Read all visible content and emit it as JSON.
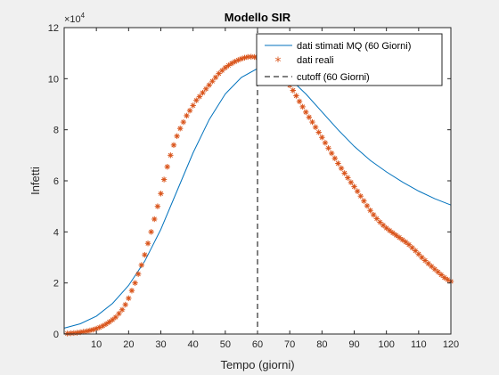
{
  "chart_data": {
    "type": "line",
    "title": "Modello SIR",
    "xlabel": "Tempo (giorni)",
    "ylabel": "Infetti",
    "y_exponent": "×10",
    "y_exponent_power": "4",
    "xlim": [
      0,
      120
    ],
    "ylim": [
      0,
      120000
    ],
    "xticks": [
      "10",
      "20",
      "30",
      "40",
      "50",
      "60",
      "70",
      "80",
      "90",
      "100",
      "110",
      "120"
    ],
    "yticks": [
      "0",
      "2",
      "4",
      "6",
      "8",
      "10",
      "12"
    ],
    "ytick_values": [
      0,
      20000,
      40000,
      60000,
      80000,
      100000,
      120000
    ],
    "xtick_values": [
      10,
      20,
      30,
      40,
      50,
      60,
      70,
      80,
      90,
      100,
      110,
      120
    ],
    "grid": false,
    "legend_position": "top-right",
    "series": [
      {
        "name": "dati stimati MQ (60 Giorni)",
        "style": "line",
        "color": "#0072BD",
        "x": [
          0,
          5,
          10,
          15,
          20,
          25,
          30,
          35,
          40,
          45,
          50,
          55,
          60,
          65,
          70,
          75,
          80,
          85,
          90,
          95,
          100,
          105,
          110,
          115,
          120
        ],
        "y": [
          2300,
          4000,
          7000,
          12000,
          19000,
          28500,
          41000,
          56000,
          71000,
          84000,
          94000,
          100500,
          104000,
          103500,
          100000,
          94000,
          87000,
          80000,
          73500,
          68000,
          63500,
          59500,
          56000,
          53000,
          50500
        ]
      },
      {
        "name": "dati reali",
        "style": "markers",
        "marker": "*",
        "color": "#D95319",
        "x": [
          1,
          2,
          3,
          4,
          5,
          6,
          7,
          8,
          9,
          10,
          11,
          12,
          13,
          14,
          15,
          16,
          17,
          18,
          19,
          20,
          21,
          22,
          23,
          24,
          25,
          26,
          27,
          28,
          29,
          30,
          31,
          32,
          33,
          34,
          35,
          36,
          37,
          38,
          39,
          40,
          41,
          42,
          43,
          44,
          45,
          46,
          47,
          48,
          49,
          50,
          51,
          52,
          53,
          54,
          55,
          56,
          57,
          58,
          59,
          60,
          61,
          62,
          63,
          64,
          65,
          66,
          67,
          68,
          69,
          70,
          71,
          72,
          73,
          74,
          75,
          76,
          77,
          78,
          79,
          80,
          81,
          82,
          83,
          84,
          85,
          86,
          87,
          88,
          89,
          90,
          91,
          92,
          93,
          94,
          95,
          96,
          97,
          98,
          99,
          100,
          101,
          102,
          103,
          104,
          105,
          106,
          107,
          108,
          109,
          110,
          111,
          112,
          113,
          114,
          115,
          116,
          117,
          118,
          119,
          120
        ],
        "y": [
          200,
          300,
          400,
          500,
          700,
          900,
          1100,
          1400,
          1700,
          2100,
          2600,
          3200,
          3900,
          4700,
          5600,
          6600,
          8000,
          9500,
          11500,
          14000,
          17000,
          20000,
          23500,
          27000,
          31000,
          35500,
          40000,
          45000,
          50000,
          55000,
          60500,
          65500,
          70000,
          74000,
          77500,
          80500,
          83000,
          85500,
          87500,
          89500,
          91500,
          93000,
          94500,
          96000,
          97500,
          99000,
          100500,
          102000,
          103200,
          104300,
          105200,
          106000,
          106700,
          107300,
          107800,
          108200,
          108500,
          108600,
          108500,
          108200,
          107700,
          107100,
          106400,
          105600,
          104700,
          103700,
          102500,
          101000,
          99300,
          97400,
          95400,
          93300,
          91100,
          89000,
          86900,
          84900,
          83000,
          81000,
          79000,
          77000,
          74900,
          72800,
          70800,
          68800,
          66800,
          64900,
          63000,
          61200,
          59400,
          57700,
          55900,
          54000,
          52100,
          50200,
          48400,
          46700,
          45200,
          43800,
          42600,
          41500,
          40500,
          39600,
          38700,
          37800,
          36900,
          36000,
          35000,
          33800,
          32600,
          31300,
          30000,
          28800,
          27600,
          26500,
          25400,
          24300,
          23200,
          22100,
          21300,
          20600
        ]
      },
      {
        "name": "cutoff (60 Giorni)",
        "style": "dashed-vertical",
        "color": "#000000",
        "x_value": 60
      }
    ]
  }
}
